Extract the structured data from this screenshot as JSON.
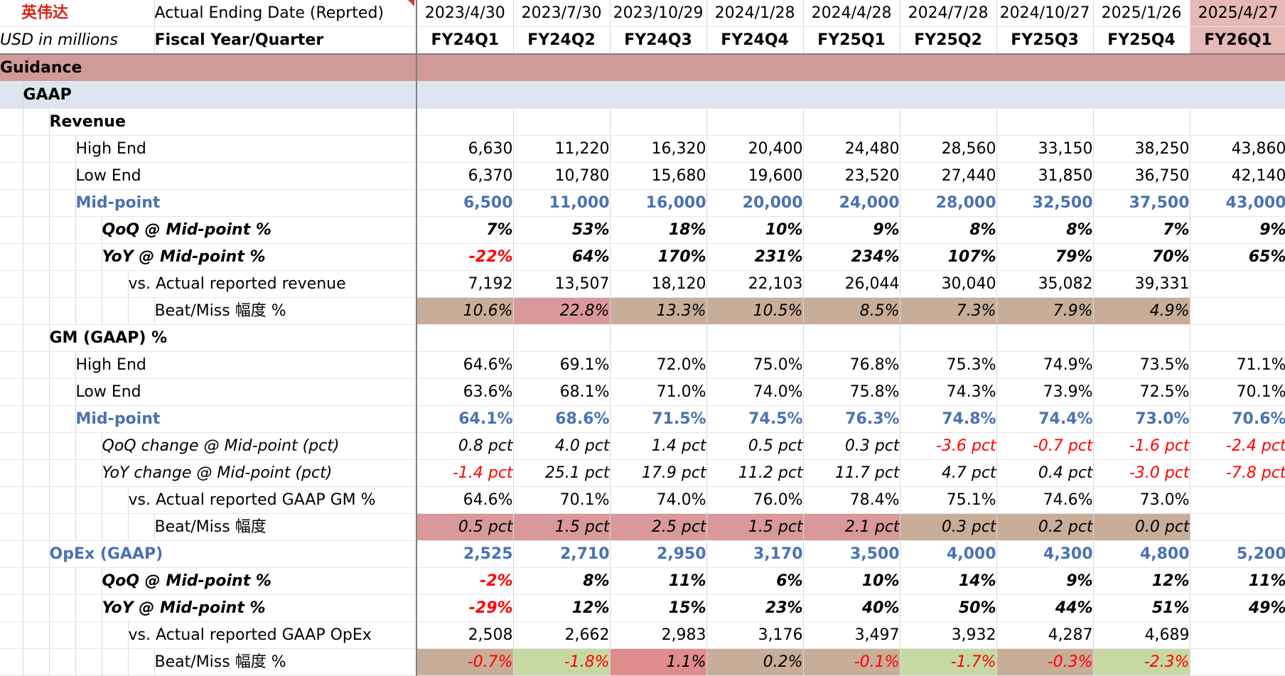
{
  "header": {
    "company": "英伟达",
    "date_label": "Actual Ending Date (Reprted)",
    "unit_label": "USD in millions",
    "fq_label": "Fiscal Year/Quarter",
    "dates": [
      "2023/4/30",
      "2023/7/30",
      "2023/10/29",
      "2024/1/28",
      "2024/4/28",
      "2024/7/28",
      "2024/10/27",
      "2025/1/26",
      "2025/4/27"
    ],
    "quarters": [
      "FY24Q1",
      "FY24Q2",
      "FY24Q3",
      "FY24Q4",
      "FY25Q1",
      "FY25Q2",
      "FY25Q3",
      "FY25Q4",
      "FY26Q1"
    ]
  },
  "sections": {
    "guidance": "Guidance",
    "gaap": "GAAP",
    "revenue": "Revenue",
    "gm": "GM (GAAP) %",
    "opex": "OpEx (GAAP)"
  },
  "revenue": {
    "high_label": "High End",
    "high": [
      "6,630",
      "11,220",
      "16,320",
      "20,400",
      "24,480",
      "28,560",
      "33,150",
      "38,250",
      "43,860"
    ],
    "low_label": "Low End",
    "low": [
      "6,370",
      "10,780",
      "15,680",
      "19,600",
      "23,520",
      "27,440",
      "31,850",
      "36,750",
      "42,140"
    ],
    "mid_label": "Mid-point",
    "mid": [
      "6,500",
      "11,000",
      "16,000",
      "20,000",
      "24,000",
      "28,000",
      "32,500",
      "37,500",
      "43,000"
    ],
    "qoq_label": "QoQ @ Mid-point %",
    "qoq": [
      "7%",
      "53%",
      "18%",
      "10%",
      "9%",
      "8%",
      "8%",
      "7%",
      "9%"
    ],
    "yoy_label": "YoY @ Mid-point %",
    "yoy": [
      "-22%",
      "64%",
      "170%",
      "231%",
      "234%",
      "107%",
      "79%",
      "70%",
      "65%"
    ],
    "actual_label": "vs. Actual reported revenue",
    "actual": [
      "7,192",
      "13,507",
      "18,120",
      "22,103",
      "26,044",
      "30,040",
      "35,082",
      "39,331",
      ""
    ],
    "beat_label": "Beat/Miss 幅度 %",
    "beat": [
      "10.6%",
      "22.8%",
      "13.3%",
      "10.5%",
      "8.5%",
      "7.3%",
      "7.9%",
      "4.9%",
      ""
    ]
  },
  "gm": {
    "high_label": "High End",
    "high": [
      "64.6%",
      "69.1%",
      "72.0%",
      "75.0%",
      "76.8%",
      "75.3%",
      "74.9%",
      "73.5%",
      "71.1%"
    ],
    "low_label": "Low End",
    "low": [
      "63.6%",
      "68.1%",
      "71.0%",
      "74.0%",
      "75.8%",
      "74.3%",
      "73.9%",
      "72.5%",
      "70.1%"
    ],
    "mid_label": "Mid-point",
    "mid": [
      "64.1%",
      "68.6%",
      "71.5%",
      "74.5%",
      "76.3%",
      "74.8%",
      "74.4%",
      "73.0%",
      "70.6%"
    ],
    "qoq_label": "QoQ change @ Mid-point (pct)",
    "qoq": [
      "0.8 pct",
      "4.0 pct",
      "1.4 pct",
      "0.5 pct",
      "0.3 pct",
      "-3.6 pct",
      "-0.7 pct",
      "-1.6 pct",
      "-2.4 pct"
    ],
    "yoy_label": "YoY change @ Mid-point (pct)",
    "yoy": [
      "-1.4 pct",
      "25.1 pct",
      "17.9 pct",
      "11.2 pct",
      "11.7 pct",
      "4.7 pct",
      "0.4 pct",
      "-3.0 pct",
      "-7.8 pct"
    ],
    "actual_label": "vs. Actual reported GAAP GM %",
    "actual": [
      "64.6%",
      "70.1%",
      "74.0%",
      "76.0%",
      "78.4%",
      "75.1%",
      "74.6%",
      "73.0%",
      ""
    ],
    "beat_label": "Beat/Miss 幅度",
    "beat": [
      "0.5 pct",
      "1.5 pct",
      "2.5 pct",
      "1.5 pct",
      "2.1 pct",
      "0.3 pct",
      "0.2 pct",
      "0.0 pct",
      ""
    ]
  },
  "opex": {
    "mid": [
      "2,525",
      "2,710",
      "2,950",
      "3,170",
      "3,500",
      "4,000",
      "4,300",
      "4,800",
      "5,200"
    ],
    "qoq_label": "QoQ @ Mid-point %",
    "qoq": [
      "-2%",
      "8%",
      "11%",
      "6%",
      "10%",
      "14%",
      "9%",
      "12%",
      "11%"
    ],
    "yoy_label": "YoY @ Mid-point %",
    "yoy": [
      "-29%",
      "12%",
      "15%",
      "23%",
      "40%",
      "50%",
      "44%",
      "51%",
      "49%"
    ],
    "actual_label": "vs. Actual reported GAAP OpEx",
    "actual": [
      "2,508",
      "2,662",
      "2,983",
      "3,176",
      "3,497",
      "3,932",
      "4,287",
      "4,689",
      ""
    ],
    "beat_label": "Beat/Miss 幅度 %",
    "beat": [
      "-0.7%",
      "-1.8%",
      "1.1%",
      "0.2%",
      "-0.1%",
      "-1.7%",
      "-0.3%",
      "-2.3%",
      ""
    ]
  },
  "colors": {
    "guidance_band": "#d09a99",
    "gaap_band": "#dce4ee",
    "midpoint_blue": "#4a72b2",
    "negative_red": "#ff0000",
    "beat_tan": "#c8ad98",
    "beat_pink": "#d9989a",
    "beat_green": "#c7d9a3"
  }
}
